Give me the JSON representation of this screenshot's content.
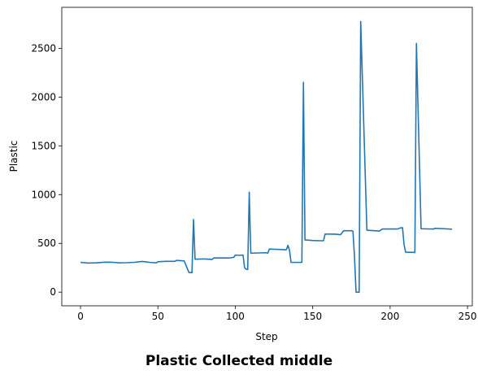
{
  "caption": "Plastic Collected middle",
  "chart_data": {
    "type": "line",
    "title": "",
    "xlabel": "Step",
    "ylabel": "Plastic",
    "xlim": [
      -12.1,
      253.1
    ],
    "ylim": [
      -140,
      2920
    ],
    "xticks": [
      0,
      50,
      100,
      150,
      200,
      250
    ],
    "yticks": [
      0,
      500,
      1000,
      1500,
      2000,
      2500
    ],
    "grid": false,
    "series": [
      {
        "color": "#1f77b4",
        "x": [
          0,
          5,
          10,
          16,
          20,
          25,
          30,
          35,
          40,
          45,
          49,
          50,
          55,
          61,
          62,
          67,
          70,
          71,
          72,
          73,
          74,
          79,
          80,
          83,
          85,
          86,
          90,
          95,
          96,
          99,
          100,
          103,
          105,
          106,
          107,
          108,
          109,
          110,
          111,
          115,
          120,
          121,
          122,
          125,
          130,
          132,
          133,
          134,
          135,
          136,
          140,
          143,
          144,
          145,
          150,
          155,
          157,
          158,
          160,
          165,
          167,
          168,
          170,
          175,
          176,
          177,
          178,
          179,
          180,
          181,
          185,
          190,
          192,
          193,
          195,
          200,
          204,
          205,
          207,
          208,
          209,
          210,
          215,
          216,
          217,
          220,
          225,
          228,
          229,
          235,
          240
        ],
        "y": [
          305,
          298,
          300,
          308,
          307,
          300,
          302,
          306,
          315,
          305,
          300,
          312,
          316,
          316,
          325,
          320,
          202,
          200,
          200,
          745,
          338,
          340,
          340,
          338,
          335,
          350,
          350,
          350,
          350,
          357,
          380,
          378,
          380,
          250,
          235,
          232,
          1025,
          400,
          400,
          402,
          404,
          400,
          442,
          440,
          437,
          435,
          435,
          480,
          430,
          305,
          305,
          305,
          2150,
          535,
          530,
          527,
          527,
          595,
          595,
          594,
          590,
          590,
          630,
          630,
          625,
          360,
          0,
          0,
          0,
          2775,
          635,
          630,
          628,
          625,
          648,
          647,
          647,
          648,
          660,
          660,
          490,
          410,
          408,
          405,
          2550,
          650,
          648,
          647,
          655,
          650,
          645
        ]
      }
    ]
  }
}
